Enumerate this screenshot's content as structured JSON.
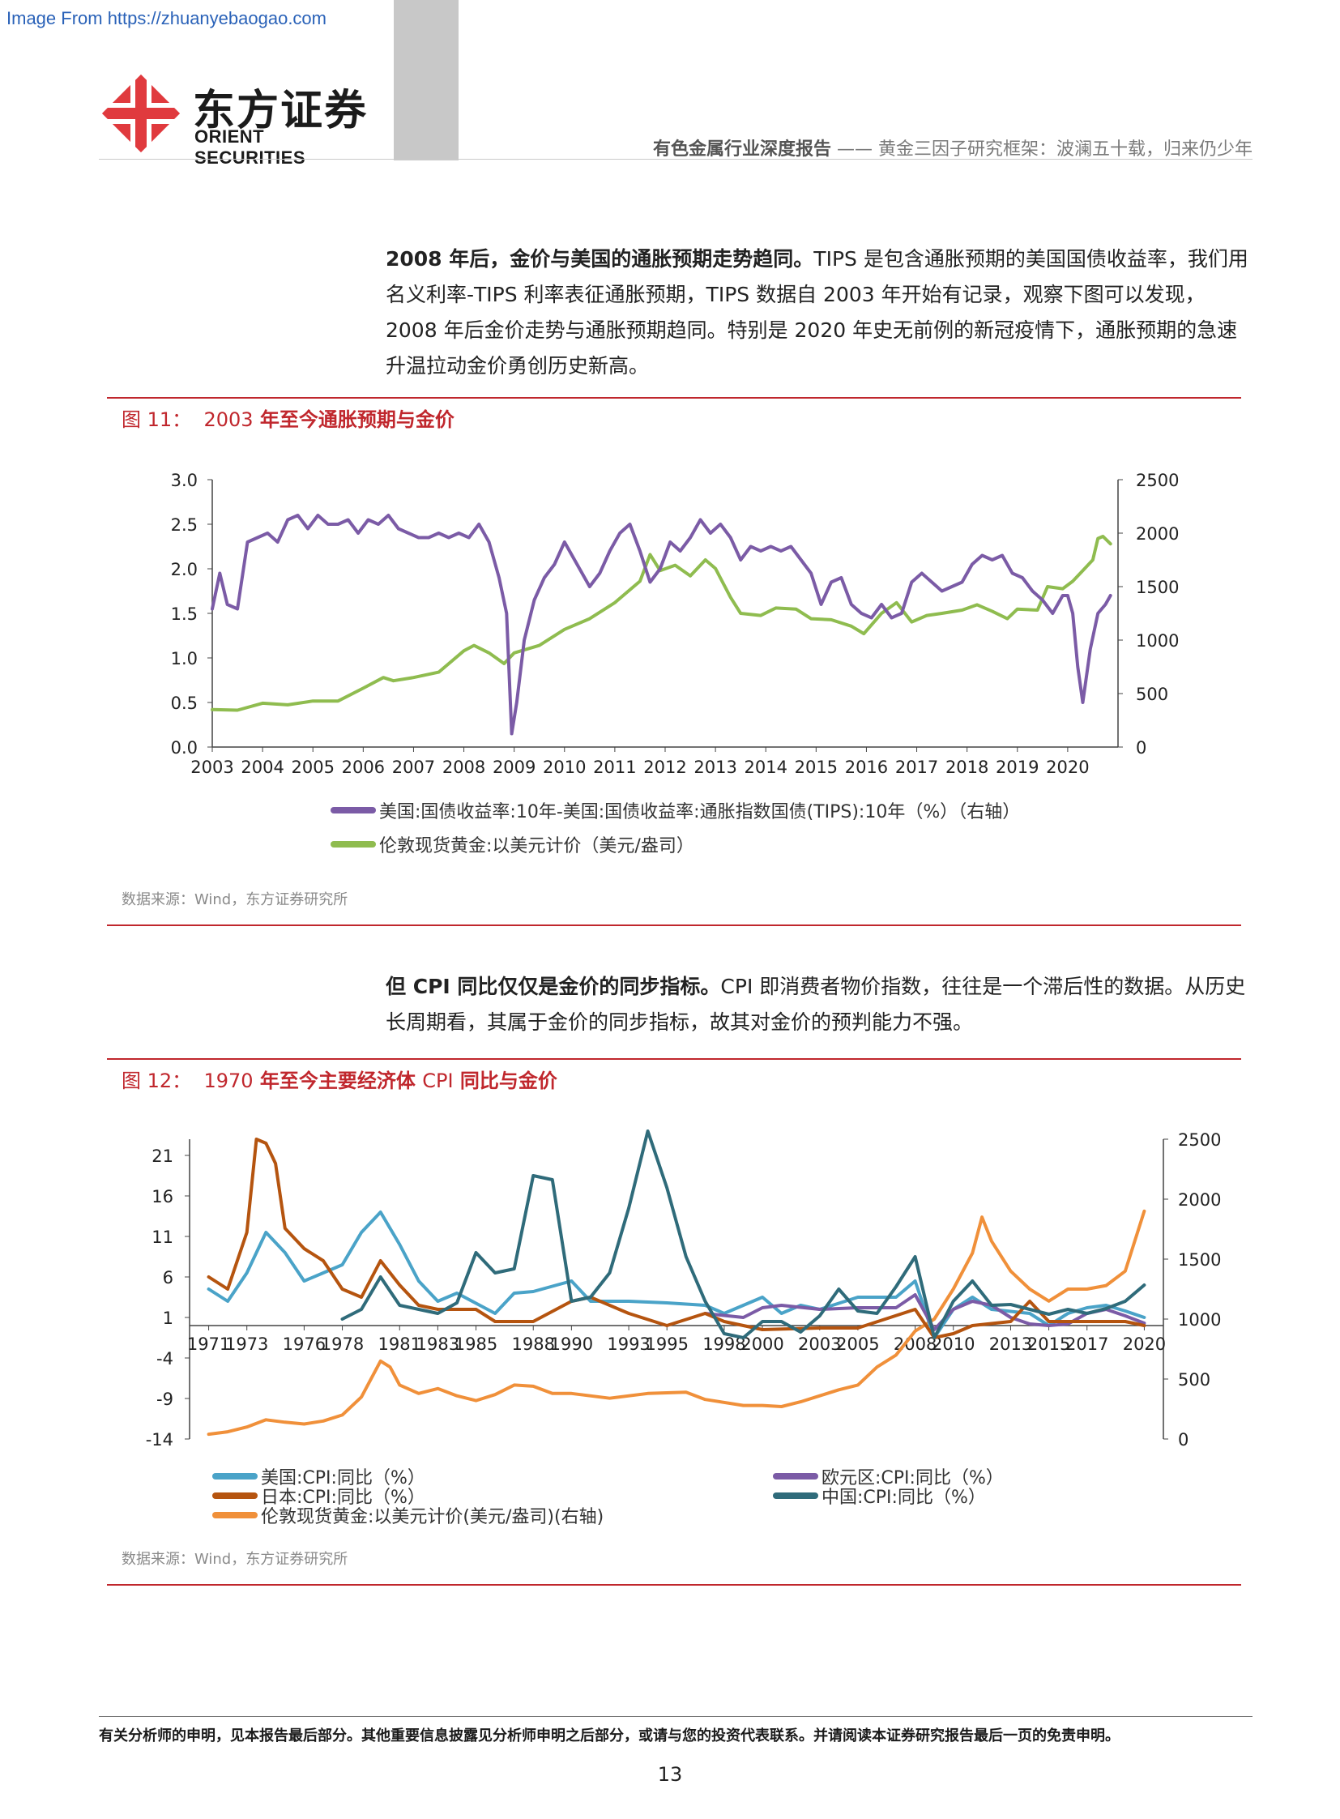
{
  "watermark": "Image From https://zhuanyebaogao.com",
  "logo": {
    "cn": "东方证券",
    "en": "ORIENT SECURITIES",
    "colors": {
      "red": "#e03a3e",
      "dark": "#1b1b1b"
    }
  },
  "header": {
    "report_type": "有色金属行业深度报告",
    "separator": "——",
    "title": "黄金三因子研究框架：波澜五十载，归来仍少年"
  },
  "paragraph1": {
    "bold": "2008 年后，金价与美国的通胀预期走势趋同。",
    "text": "TIPS 是包含通胀预期的美国国债收益率，我们用名义利率-TIPS 利率表征通胀预期，TIPS 数据自 2003 年开始有记录，观察下图可以发现，2008 年后金价走势与通胀预期趋同。特别是 2020 年史无前例的新冠疫情下，通胀预期的急速升温拉动金价勇创历史新高。"
  },
  "figure11": {
    "label": "图 11：",
    "title_prefix": "2003",
    "title": " 年至今通胀预期与金价",
    "source": "数据来源：Wind，东方证券研究所"
  },
  "paragraph2": {
    "bold_prefix": "但 ",
    "bold_cpi": "CPI",
    "bold": " 同比仅仅是金价的同步指标。",
    "text": "CPI 即消费者物价指数，往往是一个滞后性的数据。从历史长周期看，其属于金价的同步指标，故其对金价的预判能力不强。"
  },
  "figure12": {
    "label": "图 12：",
    "title_prefix": "1970",
    "title": " 年至今主要经济体 ",
    "title_cpi": "CPI",
    "title_suffix": " 同比与金价",
    "source": "数据来源：Wind，东方证券研究所"
  },
  "footer": {
    "disclaimer": "有关分析师的申明，见本报告最后部分。其他重要信息披露见分析师申明之后部分，或请与您的投资代表联系。并请阅读本证券研究报告最后一页的免责申明。",
    "page": "13"
  },
  "chart_data": [
    {
      "type": "line",
      "title": "2003 年至今通胀预期与金价",
      "x_ticks": [
        "2003",
        "2004",
        "2005",
        "2006",
        "2007",
        "2008",
        "2009",
        "2010",
        "2011",
        "2012",
        "2013",
        "2014",
        "2015",
        "2016",
        "2017",
        "2018",
        "2019",
        "2020"
      ],
      "y_left_ticks": [
        "0.0",
        "0.5",
        "1.0",
        "1.5",
        "2.0",
        "2.5",
        "3.0"
      ],
      "y_right_ticks": [
        "0",
        "500",
        "1000",
        "1500",
        "2000",
        "2500"
      ],
      "ylim_left": [
        0,
        3
      ],
      "ylim_right": [
        0,
        2500
      ],
      "series": [
        {
          "name": "美国:国债收益率:10年-美国:国债收益率:通胀指数国债(TIPS):10年（%）（右轴）",
          "color": "#7b5ba6",
          "axis": "left",
          "x": [
            2003.0,
            2003.15,
            2003.3,
            2003.5,
            2003.7,
            2003.9,
            2004.1,
            2004.3,
            2004.5,
            2004.7,
            2004.9,
            2005.1,
            2005.3,
            2005.5,
            2005.7,
            2005.9,
            2006.1,
            2006.3,
            2006.5,
            2006.7,
            2006.9,
            2007.1,
            2007.3,
            2007.5,
            2007.7,
            2007.9,
            2008.1,
            2008.3,
            2008.5,
            2008.7,
            2008.85,
            2008.95,
            2009.05,
            2009.2,
            2009.4,
            2009.6,
            2009.8,
            2010.0,
            2010.3,
            2010.5,
            2010.7,
            2010.9,
            2011.1,
            2011.3,
            2011.5,
            2011.7,
            2011.9,
            2012.1,
            2012.3,
            2012.5,
            2012.7,
            2012.9,
            2013.1,
            2013.3,
            2013.5,
            2013.7,
            2013.9,
            2014.1,
            2014.3,
            2014.5,
            2014.7,
            2014.9,
            2015.1,
            2015.3,
            2015.5,
            2015.7,
            2015.9,
            2016.1,
            2016.3,
            2016.5,
            2016.7,
            2016.9,
            2017.1,
            2017.3,
            2017.5,
            2017.7,
            2017.9,
            2018.1,
            2018.3,
            2018.5,
            2018.7,
            2018.9,
            2019.1,
            2019.3,
            2019.5,
            2019.7,
            2019.9,
            2020.0,
            2020.1,
            2020.2,
            2020.3,
            2020.45,
            2020.6,
            2020.75,
            2020.85
          ],
          "values": [
            1.55,
            1.95,
            1.6,
            1.55,
            2.3,
            2.35,
            2.4,
            2.3,
            2.55,
            2.6,
            2.45,
            2.6,
            2.5,
            2.5,
            2.55,
            2.4,
            2.55,
            2.5,
            2.6,
            2.45,
            2.4,
            2.35,
            2.35,
            2.4,
            2.35,
            2.4,
            2.35,
            2.5,
            2.3,
            1.9,
            1.5,
            0.15,
            0.5,
            1.2,
            1.65,
            1.9,
            2.05,
            2.3,
            2.0,
            1.8,
            1.95,
            2.2,
            2.4,
            2.5,
            2.2,
            1.85,
            2.0,
            2.3,
            2.2,
            2.35,
            2.55,
            2.4,
            2.5,
            2.35,
            2.1,
            2.25,
            2.2,
            2.25,
            2.2,
            2.25,
            2.1,
            1.95,
            1.6,
            1.85,
            1.9,
            1.6,
            1.5,
            1.45,
            1.6,
            1.45,
            1.5,
            1.85,
            1.95,
            1.85,
            1.75,
            1.8,
            1.85,
            2.05,
            2.15,
            2.1,
            2.15,
            1.95,
            1.9,
            1.75,
            1.65,
            1.5,
            1.7,
            1.7,
            1.5,
            0.9,
            0.5,
            1.1,
            1.5,
            1.6,
            1.7
          ]
        },
        {
          "name": "伦敦现货黄金:以美元计价（美元/盎司）",
          "color": "#8fbc4f",
          "axis": "right",
          "x": [
            2003.0,
            2003.5,
            2004.0,
            2004.5,
            2005.0,
            2005.5,
            2006.0,
            2006.4,
            2006.6,
            2007.0,
            2007.5,
            2008.0,
            2008.2,
            2008.5,
            2008.8,
            2009.0,
            2009.5,
            2010.0,
            2010.5,
            2011.0,
            2011.5,
            2011.7,
            2011.9,
            2012.2,
            2012.5,
            2012.8,
            2013.0,
            2013.3,
            2013.5,
            2013.9,
            2014.2,
            2014.6,
            2014.9,
            2015.3,
            2015.7,
            2015.95,
            2016.3,
            2016.6,
            2016.9,
            2017.2,
            2017.5,
            2017.9,
            2018.2,
            2018.5,
            2018.8,
            2019.0,
            2019.4,
            2019.6,
            2019.9,
            2020.1,
            2020.3,
            2020.5,
            2020.6,
            2020.7,
            2020.85
          ],
          "values": [
            350,
            345,
            410,
            395,
            430,
            430,
            550,
            650,
            620,
            650,
            700,
            900,
            950,
            880,
            780,
            880,
            950,
            1100,
            1200,
            1350,
            1550,
            1800,
            1650,
            1700,
            1600,
            1750,
            1670,
            1400,
            1250,
            1230,
            1300,
            1290,
            1200,
            1190,
            1130,
            1060,
            1250,
            1350,
            1170,
            1230,
            1250,
            1280,
            1330,
            1270,
            1200,
            1290,
            1280,
            1500,
            1480,
            1550,
            1650,
            1750,
            1950,
            1970,
            1900
          ]
        }
      ]
    },
    {
      "type": "line",
      "title": "1970 年至今主要经济体 CPI 同比与金价",
      "x_ticks": [
        "1971",
        "1973",
        "1976",
        "1978",
        "1981",
        "1983",
        "1985",
        "1988",
        "1990",
        "1993",
        "1995",
        "1998",
        "2000",
        "2003",
        "2005",
        "2008",
        "2010",
        "2013",
        "2015",
        "2017",
        "2020"
      ],
      "y_left_ticks": [
        "21",
        "16",
        "11",
        "6",
        "1",
        "-4",
        "-9",
        "-14"
      ],
      "y_right_ticks": [
        "2500",
        "2000",
        "1500",
        "1000",
        "500",
        "0"
      ],
      "ylim_left": [
        -14,
        23
      ],
      "ylim_right": [
        0,
        2500
      ],
      "series": [
        {
          "name": "美国:CPI:同比（%）",
          "color": "#4aa3c8",
          "axis": "left",
          "x": [
            1971,
            1972,
            1973,
            1974,
            1975,
            1976,
            1977,
            1978,
            1979,
            1980,
            1981,
            1982,
            1983,
            1984,
            1986,
            1987,
            1988,
            1990,
            1991,
            1993,
            1995,
            1997,
            1998,
            1999,
            2000,
            2001,
            2002,
            2003,
            2005,
            2006,
            2007,
            2008,
            2009,
            2010,
            2011,
            2012,
            2014,
            2015,
            2016,
            2017,
            2018,
            2019,
            2020
          ],
          "values": [
            4.5,
            3.0,
            6.5,
            11.5,
            9.0,
            5.5,
            6.5,
            7.5,
            11.5,
            14.0,
            10.0,
            5.5,
            3.0,
            4.0,
            1.5,
            4.0,
            4.2,
            5.5,
            3.0,
            3.0,
            2.8,
            2.5,
            1.5,
            2.5,
            3.5,
            1.5,
            2.5,
            2.0,
            3.5,
            3.5,
            3.5,
            5.5,
            -1.5,
            2.0,
            3.5,
            2.0,
            1.5,
            0.0,
            1.5,
            2.2,
            2.5,
            1.8,
            1.0
          ]
        },
        {
          "name": "欧元区:CPI:同比（%）",
          "color": "#7b5ba6",
          "axis": "left",
          "x": [
            1997,
            1999,
            2000,
            2001,
            2003,
            2005,
            2007,
            2008,
            2009,
            2010,
            2011,
            2012,
            2013,
            2014,
            2015,
            2016,
            2017,
            2018,
            2019,
            2020
          ],
          "values": [
            1.5,
            1.0,
            2.2,
            2.5,
            2.0,
            2.2,
            2.2,
            3.8,
            -0.5,
            2.0,
            3.0,
            2.5,
            1.0,
            0.2,
            0.0,
            0.2,
            1.5,
            2.0,
            1.2,
            0.3
          ]
        },
        {
          "name": "日本:CPI:同比（%）",
          "color": "#b5540f",
          "axis": "left",
          "x": [
            1971,
            1972,
            1973,
            1973.5,
            1974,
            1974.5,
            1975,
            1976,
            1977,
            1978,
            1979,
            1980,
            1981,
            1982,
            1983,
            1985,
            1986,
            1988,
            1990,
            1991,
            1993,
            1995,
            1997,
            1998,
            2000,
            2003,
            2005,
            2008,
            2009,
            2010,
            2011,
            2013,
            2014,
            2015,
            2017,
            2019,
            2020
          ],
          "values": [
            6.0,
            4.5,
            11.5,
            23.0,
            22.5,
            20.0,
            12.0,
            9.5,
            8.0,
            4.5,
            3.5,
            8.0,
            5.0,
            2.5,
            2.0,
            2.0,
            0.5,
            0.5,
            3.0,
            3.5,
            1.5,
            0.0,
            1.5,
            0.5,
            -0.5,
            -0.3,
            -0.3,
            2.0,
            -1.5,
            -1.0,
            0.0,
            0.5,
            3.0,
            0.5,
            0.5,
            0.5,
            0.0
          ]
        },
        {
          "name": "中国:CPI:同比（%）",
          "color": "#2f6b7a",
          "axis": "left",
          "x": [
            1978,
            1979,
            1980,
            1981,
            1982,
            1983,
            1984,
            1985,
            1986,
            1987,
            1988,
            1989,
            1990,
            1991,
            1992,
            1993,
            1994,
            1995,
            1996,
            1997,
            1998,
            1999,
            2000,
            2001,
            2002,
            2003,
            2004,
            2005,
            2006,
            2007,
            2008,
            2009,
            2010,
            2011,
            2012,
            2013,
            2014,
            2015,
            2016,
            2017,
            2018,
            2019,
            2020
          ],
          "values": [
            0.8,
            2.0,
            6.0,
            2.5,
            2.0,
            1.5,
            2.8,
            9.0,
            6.5,
            7.0,
            18.5,
            18.0,
            3.0,
            3.5,
            6.5,
            14.5,
            24.0,
            17.0,
            8.5,
            3.0,
            -1.0,
            -1.5,
            0.5,
            0.5,
            -0.8,
            1.2,
            4.5,
            1.8,
            1.5,
            4.8,
            8.5,
            -1.5,
            3.0,
            5.5,
            2.5,
            2.6,
            2.0,
            1.4,
            2.0,
            1.5,
            2.1,
            3.0,
            5.0
          ]
        },
        {
          "name": "伦敦现货黄金:以美元计价(美元/盎司)(右轴)",
          "color": "#f0903a",
          "axis": "right",
          "x": [
            1971,
            1972,
            1973,
            1974,
            1975,
            1976,
            1977,
            1978,
            1979,
            1980,
            1980.5,
            1981,
            1982,
            1983,
            1984,
            1985,
            1986,
            1987,
            1988,
            1989,
            1990,
            1992,
            1994,
            1996,
            1997,
            1999,
            2000,
            2001,
            2002,
            2003,
            2004,
            2005,
            2006,
            2007,
            2008,
            2009,
            2010,
            2011,
            2011.5,
            2012,
            2013,
            2014,
            2015,
            2016,
            2017,
            2018,
            2019,
            2020
          ],
          "values": [
            40,
            60,
            100,
            160,
            140,
            125,
            150,
            200,
            350,
            650,
            600,
            450,
            380,
            420,
            360,
            320,
            370,
            450,
            440,
            380,
            380,
            340,
            380,
            390,
            330,
            280,
            280,
            270,
            310,
            360,
            410,
            450,
            600,
            700,
            900,
            1000,
            1250,
            1550,
            1850,
            1650,
            1400,
            1250,
            1150,
            1250,
            1250,
            1280,
            1400,
            1900
          ]
        }
      ]
    }
  ]
}
